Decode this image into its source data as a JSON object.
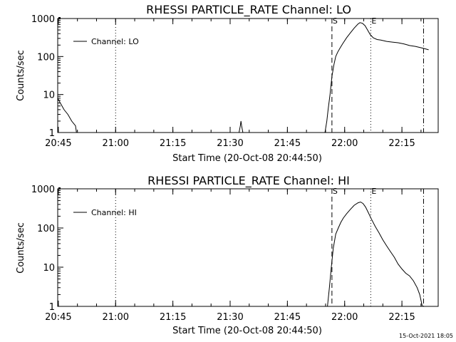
{
  "footer": {
    "timestamp": "15-Oct-2021 18:05"
  },
  "chart_data": [
    {
      "type": "line",
      "title": "RHESSI PARTICLE_RATE Channel: LO",
      "xlabel": "Start Time (20-Oct-08 20:44:50)",
      "ylabel": "Counts/sec",
      "yscale": "log",
      "ylim": [
        1,
        1000
      ],
      "xlim": [
        "20:44:50",
        "22:24:30"
      ],
      "x_ticks": [
        "20:45",
        "21:00",
        "21:15",
        "21:30",
        "21:45",
        "22:00",
        "22:15"
      ],
      "y_ticks": [
        "1",
        "10",
        "100",
        "1000"
      ],
      "grid": false,
      "legend_position": "top-left",
      "series": [
        {
          "name": "Channel: LO",
          "color": "#000000",
          "x": [
            "20:44:50",
            "20:45:30",
            "20:46:30",
            "20:47:30",
            "20:48:30",
            "20:49:30",
            "20:49:45"
          ],
          "y": [
            8,
            6,
            4,
            3,
            2,
            1.5,
            1
          ]
        },
        {
          "color": "#000000",
          "x": [
            "21:32:20",
            "21:32:40",
            "21:32:50",
            "21:33:00",
            "21:33:20"
          ],
          "y": [
            1,
            1.5,
            2,
            1.5,
            1
          ]
        },
        {
          "color": "#000000",
          "x": [
            "21:54:50",
            "21:55:20",
            "21:55:40",
            "21:56:10",
            "21:56:40",
            "21:57:10",
            "21:57:40",
            "21:58:10",
            "21:58:50",
            "21:59:30",
            "22:00:30",
            "22:01:30",
            "22:02:30",
            "22:03:30",
            "22:04:00",
            "22:04:40",
            "22:05:20",
            "22:06:00",
            "22:06:40",
            "22:07:30",
            "22:08:30",
            "22:09:30",
            "22:11:00",
            "22:12:30",
            "22:14:00",
            "22:15:30",
            "22:17:00",
            "22:18:30",
            "22:20:00",
            "22:21:00",
            "22:22:00"
          ],
          "y": [
            1,
            2,
            4,
            10,
            30,
            60,
            100,
            130,
            170,
            220,
            310,
            420,
            560,
            720,
            780,
            750,
            650,
            500,
            380,
            310,
            280,
            270,
            250,
            240,
            230,
            215,
            195,
            185,
            170,
            160,
            150
          ]
        }
      ],
      "markers": [
        {
          "label": "S",
          "time": "21:56:40",
          "style": "dashed"
        },
        {
          "label": "E",
          "time": "22:06:50",
          "style": "dotted"
        },
        {
          "label": "",
          "time": "22:20:40",
          "style": "dashdot"
        },
        {
          "label": "",
          "time": "21:00:00",
          "style": "dotted"
        }
      ]
    },
    {
      "type": "line",
      "title": "RHESSI PARTICLE_RATE Channel: HI",
      "xlabel": "Start Time (20-Oct-08 20:44:50)",
      "ylabel": "Counts/sec",
      "yscale": "log",
      "ylim": [
        1,
        1000
      ],
      "xlim": [
        "20:44:50",
        "22:24:30"
      ],
      "x_ticks": [
        "20:45",
        "21:00",
        "21:15",
        "21:30",
        "21:45",
        "22:00",
        "22:15"
      ],
      "y_ticks": [
        "1",
        "10",
        "100",
        "1000"
      ],
      "grid": false,
      "legend_position": "top-left",
      "series": [
        {
          "name": "Channel: HI",
          "color": "#000000",
          "x": [
            "21:55:30",
            "21:56:00",
            "21:56:30",
            "21:57:00",
            "21:57:40",
            "21:58:20",
            "21:59:00",
            "21:59:40",
            "22:00:30",
            "22:01:30",
            "22:02:30",
            "22:03:30",
            "22:04:10",
            "22:04:50",
            "22:05:30",
            "22:06:10",
            "22:07:00",
            "22:08:00",
            "22:09:00",
            "22:10:00",
            "22:11:00",
            "22:12:00",
            "22:13:00",
            "22:14:00",
            "22:15:00",
            "22:16:00",
            "22:17:00",
            "22:18:00",
            "22:19:00",
            "22:19:40",
            "22:20:20"
          ],
          "y": [
            1,
            3,
            10,
            30,
            70,
            100,
            140,
            180,
            230,
            300,
            380,
            440,
            460,
            420,
            340,
            250,
            170,
            110,
            75,
            50,
            35,
            25,
            18,
            12,
            9,
            7,
            6,
            4.5,
            3,
            2,
            1
          ]
        }
      ],
      "markers": [
        {
          "label": "S",
          "time": "21:56:40",
          "style": "dashed"
        },
        {
          "label": "E",
          "time": "22:06:50",
          "style": "dotted"
        },
        {
          "label": "",
          "time": "22:20:40",
          "style": "dashdot"
        },
        {
          "label": "",
          "time": "21:00:00",
          "style": "dotted"
        }
      ]
    }
  ]
}
